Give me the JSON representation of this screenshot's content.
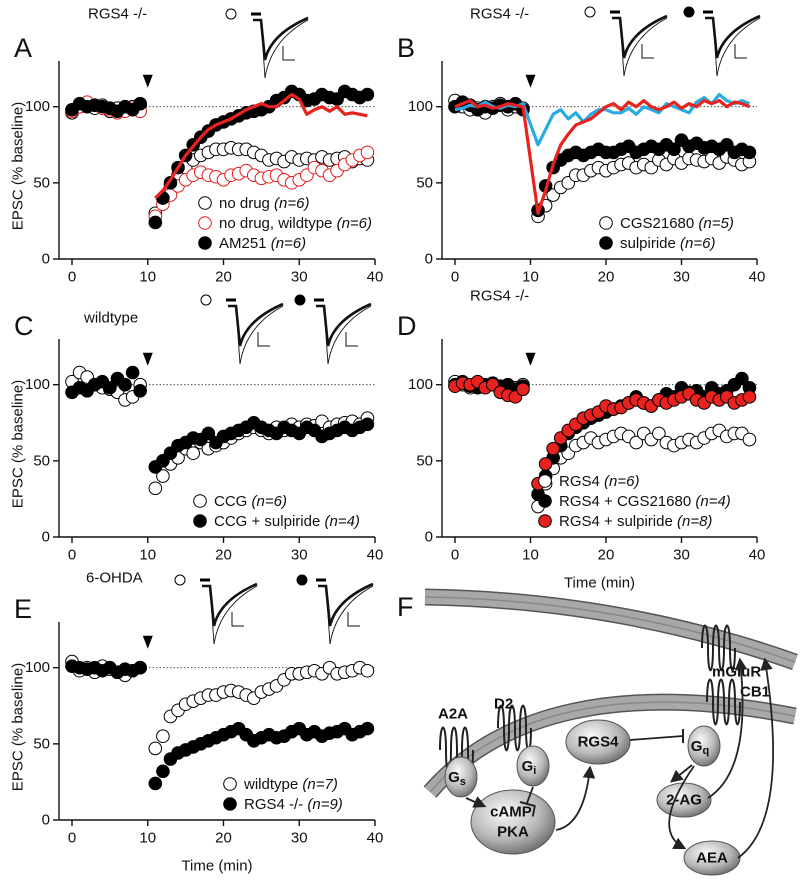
{
  "chart_data": [
    {
      "type": "scatter",
      "panel": "A",
      "genotype": "RGS4 -/-",
      "y_label": "EPSC (% baseline)",
      "x": [
        0,
        1,
        2,
        3,
        4,
        5,
        6,
        7,
        8,
        9,
        11,
        12,
        13,
        14,
        15,
        16,
        17,
        18,
        19,
        20,
        21,
        22,
        23,
        24,
        25,
        26,
        27,
        28,
        29,
        30,
        31,
        32,
        33,
        34,
        35,
        36,
        37,
        38,
        39
      ],
      "xlim": [
        0,
        40
      ],
      "ylim": [
        0,
        130
      ],
      "xticks": [
        0,
        10,
        20,
        30,
        40
      ],
      "yticks": [
        0,
        50,
        100
      ],
      "reference_line": 100,
      "arrow_x": 10,
      "legend": "lower right",
      "series": [
        {
          "name": "no drug",
          "n_label": "(n=6)",
          "marker": "open",
          "color": "#000000",
          "values": [
            96,
            100,
            102,
            99,
            101,
            97,
            99,
            98,
            100,
            101,
            30,
            40,
            48,
            55,
            60,
            65,
            68,
            70,
            72,
            72,
            73,
            72,
            72,
            70,
            68,
            65,
            66,
            64,
            67,
            65,
            66,
            65,
            67,
            65,
            66,
            67,
            64,
            66,
            65
          ]
        },
        {
          "name": "no drug, wildtype",
          "n_label": "(n=6)",
          "marker": "open",
          "color": "#e41a1c",
          "values": [
            97,
            100,
            103,
            101,
            99,
            98,
            96,
            97,
            99,
            97,
            28,
            36,
            42,
            48,
            52,
            55,
            57,
            55,
            54,
            52,
            55,
            56,
            58,
            55,
            53,
            54,
            55,
            52,
            50,
            52,
            55,
            60,
            58,
            55,
            58,
            62,
            65,
            68,
            70
          ]
        },
        {
          "name": "AM251",
          "n_label": "(n=6)",
          "marker": "filled",
          "color": "#000000",
          "values": [
            98,
            102,
            100,
            101,
            100,
            99,
            97,
            100,
            98,
            102,
            24,
            40,
            50,
            60,
            68,
            75,
            80,
            84,
            88,
            90,
            92,
            94,
            96,
            97,
            98,
            100,
            104,
            106,
            110,
            108,
            104,
            105,
            108,
            106,
            105,
            110,
            108,
            106,
            108
          ]
        },
        {
          "marker": "none",
          "color": "#e8231f",
          "values": [
            null,
            null,
            null,
            null,
            null,
            null,
            null,
            null,
            null,
            null,
            40,
            45,
            52,
            60,
            68,
            74,
            80,
            85,
            88,
            90,
            92,
            95,
            98,
            100,
            102,
            100,
            100,
            104,
            108,
            105,
            95,
            98,
            100,
            97,
            100,
            95,
            96,
            95,
            94
          ]
        }
      ]
    },
    {
      "type": "scatter",
      "panel": "B",
      "genotype": "RGS4 -/-",
      "x": [
        0,
        1,
        2,
        3,
        4,
        5,
        6,
        7,
        8,
        9,
        11,
        12,
        13,
        14,
        15,
        16,
        17,
        18,
        19,
        20,
        21,
        22,
        23,
        24,
        25,
        26,
        27,
        28,
        29,
        30,
        31,
        32,
        33,
        34,
        35,
        36,
        37,
        38,
        39
      ],
      "xlim": [
        0,
        40
      ],
      "ylim": [
        0,
        130
      ],
      "xticks": [
        0,
        10,
        20,
        30,
        40
      ],
      "yticks": [
        0,
        50,
        100
      ],
      "reference_line": 100,
      "arrow_x": 10,
      "legend": "lower right",
      "series": [
        {
          "marker": "none",
          "color": "#29abe2",
          "values": [
            98,
            99,
            101,
            100,
            103,
            100,
            99,
            101,
            100,
            102,
            75,
            85,
            95,
            98,
            92,
            96,
            90,
            95,
            98,
            98,
            96,
            96,
            99,
            95,
            100,
            98,
            96,
            102,
            100,
            98,
            96,
            103,
            106,
            102,
            108,
            104,
            102,
            104,
            102
          ]
        },
        {
          "marker": "none",
          "color": "#e8231f",
          "values": [
            100,
            102,
            104,
            100,
            101,
            99,
            100,
            102,
            101,
            100,
            30,
            45,
            62,
            75,
            82,
            88,
            90,
            92,
            96,
            100,
            102,
            98,
            103,
            100,
            104,
            100,
            98,
            100,
            103,
            99,
            102,
            100,
            104,
            102,
            104,
            100,
            103,
            102,
            100
          ]
        },
        {
          "name": "CGS21680",
          "n_label": "(n=5)",
          "marker": "open",
          "color": "#000000",
          "values": [
            104,
            100,
            98,
            99,
            96,
            100,
            102,
            98,
            100,
            99,
            28,
            35,
            42,
            47,
            50,
            55,
            55,
            58,
            60,
            58,
            60,
            62,
            63,
            60,
            62,
            60,
            65,
            62,
            66,
            63,
            66,
            65,
            64,
            66,
            63,
            67,
            65,
            62,
            64
          ]
        },
        {
          "name": "sulpiride",
          "n_label": "(n=6)",
          "marker": "filled",
          "color": "#000000",
          "values": [
            100,
            103,
            101,
            98,
            100,
            99,
            101,
            100,
            102,
            98,
            32,
            48,
            60,
            65,
            68,
            70,
            68,
            70,
            72,
            70,
            70,
            72,
            74,
            70,
            72,
            74,
            72,
            75,
            72,
            78,
            74,
            76,
            73,
            74,
            72,
            75,
            70,
            72,
            70
          ]
        }
      ]
    },
    {
      "type": "scatter",
      "panel": "C",
      "genotype": "wildtype",
      "y_label": "EPSC (% baseline)",
      "x": [
        0,
        1,
        2,
        3,
        4,
        5,
        6,
        7,
        8,
        9,
        11,
        12,
        13,
        14,
        15,
        16,
        17,
        18,
        19,
        20,
        21,
        22,
        23,
        24,
        25,
        26,
        27,
        28,
        29,
        30,
        31,
        32,
        33,
        34,
        35,
        36,
        37,
        38,
        39
      ],
      "xlim": [
        0,
        40
      ],
      "ylim": [
        0,
        130
      ],
      "xticks": [
        0,
        10,
        20,
        30,
        40
      ],
      "yticks": [
        0,
        50,
        100
      ],
      "reference_line": 100,
      "arrow_x": 10,
      "legend": "lower right",
      "series": [
        {
          "name": "CCG",
          "n_label": "(n=6)",
          "marker": "open",
          "color": "#000000",
          "values": [
            102,
            108,
            105,
            100,
            98,
            97,
            95,
            90,
            92,
            100,
            32,
            40,
            48,
            52,
            58,
            55,
            62,
            58,
            60,
            62,
            65,
            68,
            70,
            72,
            70,
            68,
            72,
            70,
            74,
            72,
            74,
            73,
            76,
            72,
            74,
            75,
            76,
            74,
            78
          ]
        },
        {
          "name": "CCG + sulpiride",
          "n_label": "(n=4)",
          "marker": "filled",
          "color": "#000000",
          "values": [
            95,
            98,
            96,
            100,
            102,
            98,
            104,
            100,
            108,
            96,
            46,
            50,
            55,
            60,
            62,
            65,
            64,
            68,
            62,
            66,
            68,
            70,
            72,
            75,
            72,
            70,
            68,
            72,
            70,
            68,
            72,
            70,
            66,
            68,
            70,
            72,
            70,
            72,
            74
          ]
        }
      ]
    },
    {
      "type": "scatter",
      "panel": "D",
      "genotype": "RGS4 -/-",
      "x_label": "Time (min)",
      "x": [
        0,
        1,
        2,
        3,
        4,
        5,
        6,
        7,
        8,
        9,
        11,
        12,
        13,
        14,
        15,
        16,
        17,
        18,
        19,
        20,
        21,
        22,
        23,
        24,
        25,
        26,
        27,
        28,
        29,
        30,
        31,
        32,
        33,
        34,
        35,
        36,
        37,
        38,
        39
      ],
      "xlim": [
        0,
        40
      ],
      "ylim": [
        0,
        130
      ],
      "xticks": [
        0,
        10,
        20,
        30,
        40
      ],
      "yticks": [
        0,
        50,
        100
      ],
      "reference_line": 100,
      "arrow_x": 10,
      "legend": "lower right",
      "series": [
        {
          "name": "RGS4",
          "n_label": "(n=6)",
          "marker": "open",
          "color": "#000000",
          "values": [
            102,
            100,
            98,
            101,
            99,
            100,
            97,
            96,
            98,
            100,
            20,
            35,
            45,
            52,
            55,
            60,
            62,
            65,
            62,
            64,
            66,
            68,
            66,
            62,
            68,
            64,
            68,
            62,
            60,
            62,
            64,
            62,
            65,
            68,
            70,
            66,
            68,
            68,
            64
          ]
        },
        {
          "name": "RGS4 + CGS21680",
          "n_label": "(n=4)",
          "marker": "filled",
          "color": "#000000",
          "values": [
            100,
            102,
            99,
            98,
            100,
            101,
            99,
            100,
            97,
            99,
            28,
            40,
            52,
            60,
            68,
            72,
            75,
            78,
            80,
            82,
            84,
            86,
            88,
            92,
            88,
            86,
            90,
            94,
            92,
            98,
            95,
            96,
            92,
            98,
            94,
            96,
            100,
            104,
            98
          ]
        },
        {
          "name": "RGS4 + sulpiride",
          "n_label": "(n=8)",
          "marker": "filled",
          "color": "#e8231f",
          "values": [
            99,
            101,
            100,
            102,
            98,
            100,
            95,
            93,
            92,
            97,
            35,
            48,
            58,
            65,
            70,
            74,
            78,
            80,
            82,
            86,
            84,
            85,
            88,
            90,
            88,
            86,
            90,
            88,
            90,
            92,
            94,
            90,
            88,
            92,
            90,
            92,
            88,
            90,
            92
          ]
        }
      ]
    },
    {
      "type": "scatter",
      "panel": "E",
      "genotype": "6-OHDA",
      "y_label": "EPSC (% baseline)",
      "x_label": "Time (min)",
      "x": [
        0,
        1,
        2,
        3,
        4,
        5,
        6,
        7,
        8,
        9,
        11,
        12,
        13,
        14,
        15,
        16,
        17,
        18,
        19,
        20,
        21,
        22,
        23,
        24,
        25,
        26,
        27,
        28,
        29,
        30,
        31,
        32,
        33,
        34,
        35,
        36,
        37,
        38,
        39
      ],
      "xlim": [
        0,
        40
      ],
      "ylim": [
        0,
        130
      ],
      "xticks": [
        0,
        10,
        20,
        30,
        40
      ],
      "yticks": [
        0,
        50,
        100
      ],
      "reference_line": 100,
      "arrow_x": 10,
      "legend": "lower right",
      "series": [
        {
          "name": "wildtype",
          "n_label": "(n=7)",
          "marker": "open",
          "color": "#000000",
          "values": [
            104,
            98,
            100,
            97,
            101,
            99,
            97,
            95,
            98,
            100,
            47,
            55,
            68,
            72,
            76,
            78,
            80,
            82,
            82,
            84,
            85,
            84,
            82,
            80,
            84,
            86,
            88,
            92,
            96,
            96,
            97,
            98,
            96,
            100,
            96,
            97,
            98,
            100,
            98
          ]
        },
        {
          "name": "RGS4 -/-",
          "n_label": "(n=9)",
          "marker": "filled",
          "color": "#000000",
          "values": [
            101,
            100,
            99,
            100,
            98,
            100,
            97,
            99,
            98,
            100,
            24,
            32,
            40,
            44,
            46,
            48,
            50,
            52,
            54,
            56,
            58,
            60,
            56,
            52,
            54,
            56,
            54,
            55,
            58,
            60,
            56,
            58,
            55,
            57,
            58,
            60,
            56,
            58,
            60
          ]
        }
      ]
    }
  ],
  "diagram": {
    "label": "F",
    "receptors": {
      "cb1": "CB1",
      "mglur": "mGluR",
      "a2a": "A2A",
      "d2": "D2"
    },
    "nodes": {
      "gs": {
        "main": "G",
        "sub": "s"
      },
      "gi": {
        "main": "G",
        "sub": "i"
      },
      "gq": {
        "main": "G",
        "sub": "q"
      },
      "rgs4": "RGS4",
      "camp": [
        "cAMP/",
        "PKA"
      ],
      "ag": "2-AG",
      "aea": "AEA"
    }
  }
}
